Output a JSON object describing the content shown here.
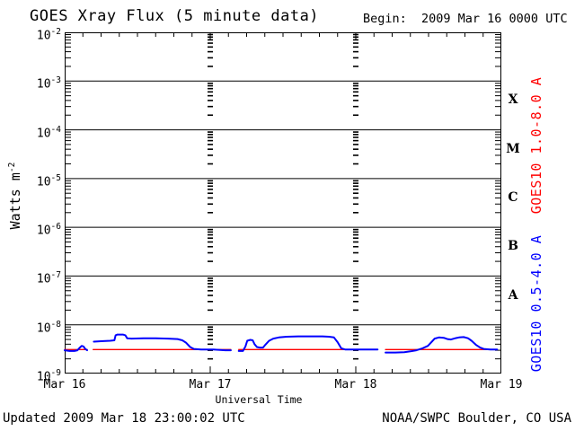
{
  "header": {
    "title": "GOES Xray Flux (5 minute data)",
    "begin_label": "Begin:  2009 Mar 16 0000 UTC"
  },
  "footer": {
    "updated": "Updated 2009 Mar 18 23:00:02 UTC",
    "source": "NOAA/SWPC Boulder, CO USA"
  },
  "right_labels": {
    "long_band": "GOES10 1.0-8.0 A",
    "short_band": "GOES10 0.5-4.0 A"
  },
  "colors": {
    "long_band": "#ff0000",
    "short_band": "#0000ff",
    "axis": "#000000",
    "background": "#ffffff"
  },
  "chart_data": {
    "type": "line",
    "title": "GOES Xray Flux (5 minute data)",
    "xlabel": "Universal Time",
    "ylabel": {
      "text": "Watts m",
      "exponent": "-2"
    },
    "x_axis": {
      "start": "2009 Mar 16 0000 UTC",
      "span_hours": 72,
      "tick_labels": [
        "Mar 16",
        "Mar 17",
        "Mar 18",
        "Mar 19"
      ],
      "tick_hours": [
        0,
        24,
        48,
        72
      ],
      "minor_tick_interval_hours": 3,
      "day_gridline_hours": [
        24,
        48
      ]
    },
    "y_axis": {
      "scale": "log",
      "min": 1e-09,
      "max": 0.01,
      "tick_exponents": [
        -2,
        -3,
        -4,
        -5,
        -6,
        -7,
        -8,
        -9
      ],
      "grid_decades": [
        -3,
        -4,
        -5,
        -6,
        -7,
        -8
      ],
      "unit": "Watts m^-2"
    },
    "flare_classes": [
      {
        "label": "X",
        "log_center": -3.5
      },
      {
        "label": "M",
        "log_center": -4.5
      },
      {
        "label": "C",
        "log_center": -5.5
      },
      {
        "label": "B",
        "log_center": -6.5
      },
      {
        "label": "A",
        "log_center": -7.5
      }
    ],
    "legend_position": "right-rotated",
    "series": [
      {
        "name": "GOES10 1.0-8.0 A",
        "color": "#ff0000",
        "width": 1.4,
        "segments": [
          [
            [
              0,
              3.1e-09
            ],
            [
              3.7,
              3.1e-09
            ]
          ],
          [
            [
              4.7,
              3.1e-09
            ],
            [
              27.4,
              3.1e-09
            ]
          ],
          [
            [
              28.7,
              3.1e-09
            ],
            [
              51.6,
              3.1e-09
            ]
          ],
          [
            [
              52.9,
              3.1e-09
            ],
            [
              71.3,
              3.1e-09
            ]
          ]
        ]
      },
      {
        "name": "GOES10 0.5-4.0 A",
        "color": "#0000ff",
        "width": 2,
        "segments": [
          [
            [
              0,
              3e-09
            ],
            [
              0.8,
              2.9e-09
            ],
            [
              1.6,
              2.9e-09
            ],
            [
              2.1,
              3e-09
            ],
            [
              2.5,
              3.4e-09
            ],
            [
              2.8,
              3.7e-09
            ],
            [
              3.1,
              3.6e-09
            ],
            [
              3.4,
              3.2e-09
            ],
            [
              3.7,
              3e-09
            ]
          ],
          [
            [
              4.8,
              4.5e-09
            ],
            [
              6,
              4.6e-09
            ],
            [
              7.5,
              4.7e-09
            ],
            [
              8.2,
              4.8e-09
            ],
            [
              8.4,
              6.1e-09
            ],
            [
              8.7,
              6.3e-09
            ],
            [
              9.6,
              6.3e-09
            ],
            [
              10.0,
              6.1e-09
            ],
            [
              10.3,
              5.3e-09
            ],
            [
              11,
              5.2e-09
            ],
            [
              13,
              5.3e-09
            ],
            [
              15,
              5.3e-09
            ],
            [
              17,
              5.2e-09
            ],
            [
              18.6,
              5.1e-09
            ],
            [
              19.4,
              4.8e-09
            ],
            [
              20.0,
              4.3e-09
            ],
            [
              20.7,
              3.5e-09
            ],
            [
              21.3,
              3.2e-09
            ],
            [
              22.5,
              3.1e-09
            ],
            [
              24.5,
              3.1e-09
            ],
            [
              26.5,
              3e-09
            ],
            [
              27.4,
              3e-09
            ]
          ],
          [
            [
              28.7,
              2.9e-09
            ],
            [
              29.4,
              2.9e-09
            ],
            [
              29.8,
              3.6e-09
            ],
            [
              30.1,
              4.7e-09
            ],
            [
              30.6,
              4.9e-09
            ],
            [
              31.0,
              4.8e-09
            ],
            [
              31.3,
              4e-09
            ],
            [
              31.7,
              3.5e-09
            ],
            [
              32.2,
              3.4e-09
            ],
            [
              32.7,
              3.4e-09
            ],
            [
              33.1,
              3.9e-09
            ],
            [
              33.7,
              4.7e-09
            ],
            [
              34.4,
              5.2e-09
            ],
            [
              35.3,
              5.5e-09
            ],
            [
              36.6,
              5.7e-09
            ],
            [
              38.5,
              5.8e-09
            ],
            [
              40.5,
              5.8e-09
            ],
            [
              42.5,
              5.8e-09
            ],
            [
              43.6,
              5.7e-09
            ],
            [
              44.4,
              5.5e-09
            ],
            [
              45.0,
              4.4e-09
            ],
            [
              45.6,
              3.3e-09
            ],
            [
              46.3,
              3.1e-09
            ],
            [
              48.5,
              3.1e-09
            ],
            [
              50.5,
              3.1e-09
            ],
            [
              51.6,
              3.1e-09
            ]
          ],
          [
            [
              52.9,
              2.7e-09
            ],
            [
              54.5,
              2.7e-09
            ],
            [
              56.0,
              2.75e-09
            ],
            [
              57.0,
              2.85e-09
            ],
            [
              58.0,
              3e-09
            ],
            [
              59.0,
              3.3e-09
            ],
            [
              59.9,
              3.7e-09
            ],
            [
              60.4,
              4.3e-09
            ],
            [
              61.0,
              5.2e-09
            ],
            [
              61.7,
              5.5e-09
            ],
            [
              62.5,
              5.4e-09
            ],
            [
              63.1,
              5.1e-09
            ],
            [
              63.7,
              5e-09
            ],
            [
              64.4,
              5.3e-09
            ],
            [
              65.0,
              5.5e-09
            ],
            [
              65.8,
              5.6e-09
            ],
            [
              66.5,
              5.3e-09
            ],
            [
              67.1,
              4.7e-09
            ],
            [
              67.8,
              3.9e-09
            ],
            [
              68.5,
              3.4e-09
            ],
            [
              69.1,
              3.2e-09
            ],
            [
              70.2,
              3.1e-09
            ],
            [
              71.3,
              3.1e-09
            ]
          ]
        ]
      }
    ]
  }
}
